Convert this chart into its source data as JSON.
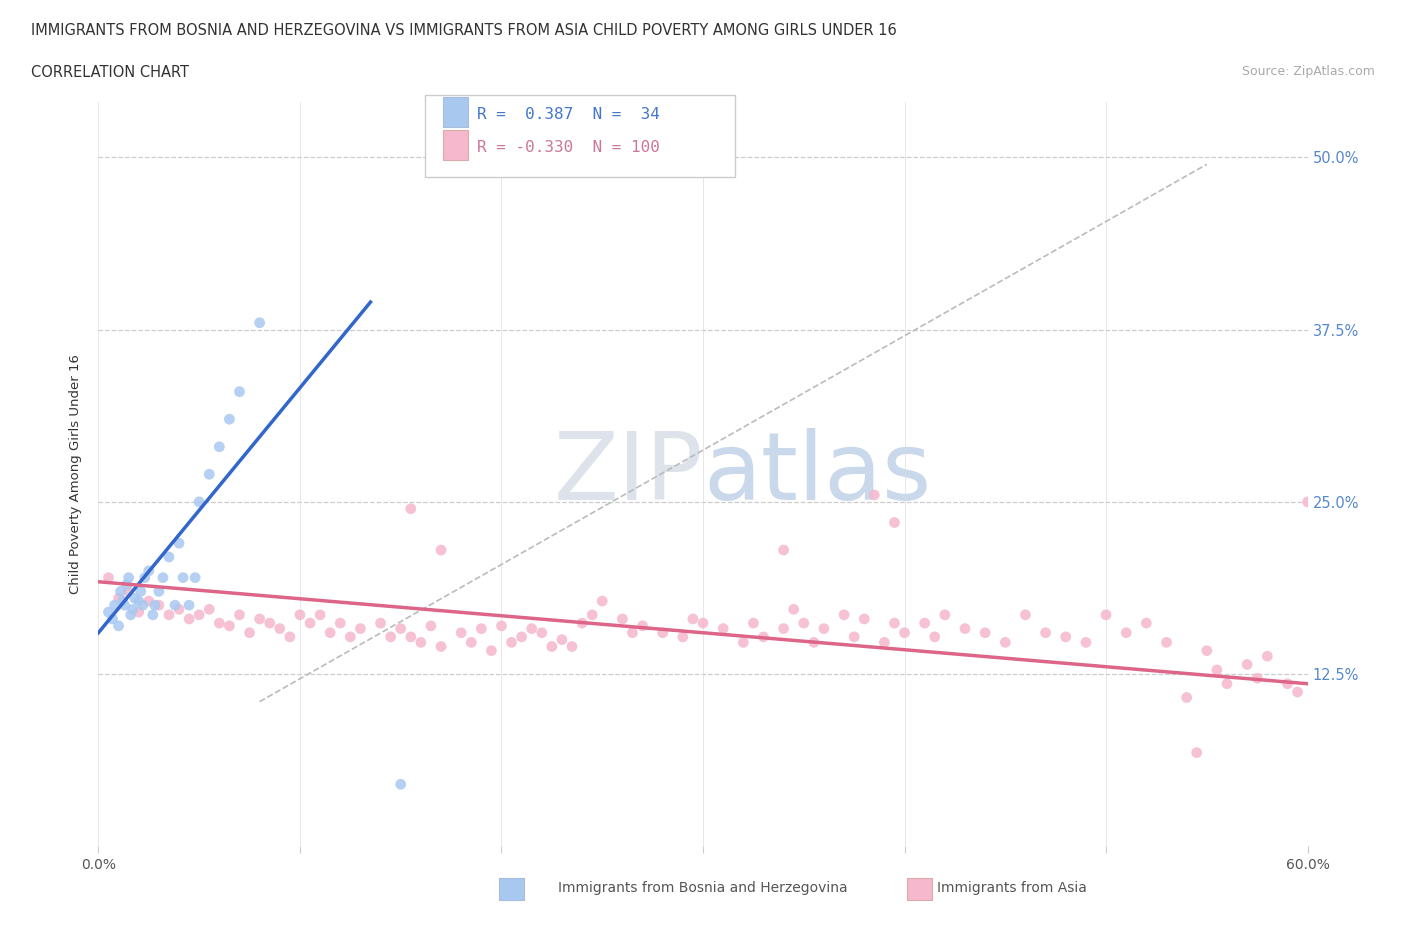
{
  "title_line1": "IMMIGRANTS FROM BOSNIA AND HERZEGOVINA VS IMMIGRANTS FROM ASIA CHILD POVERTY AMONG GIRLS UNDER 16",
  "title_line2": "CORRELATION CHART",
  "source_text": "Source: ZipAtlas.com",
  "ylabel": "Child Poverty Among Girls Under 16",
  "xlim": [
    0.0,
    0.6
  ],
  "ylim": [
    0.0,
    0.54
  ],
  "y_tick_labels": [
    "12.5%",
    "25.0%",
    "37.5%",
    "50.0%"
  ],
  "y_tick_values": [
    0.125,
    0.25,
    0.375,
    0.5
  ],
  "grid_color": "#cccccc",
  "blue_scatter_color": "#a8c8f0",
  "pink_scatter_color": "#f5b8cc",
  "blue_line_color": "#3366cc",
  "pink_line_color": "#dd6688",
  "diagonal_color": "#bbbbbb",
  "bosnia_scatter_x": [
    0.005,
    0.007,
    0.008,
    0.01,
    0.011,
    0.012,
    0.013,
    0.014,
    0.015,
    0.016,
    0.017,
    0.018,
    0.02,
    0.021,
    0.022,
    0.023,
    0.025,
    0.027,
    0.028,
    0.03,
    0.032,
    0.035,
    0.038,
    0.04,
    0.042,
    0.045,
    0.048,
    0.05,
    0.055,
    0.06,
    0.065,
    0.07,
    0.08,
    0.15
  ],
  "bosnia_scatter_y": [
    0.17,
    0.165,
    0.175,
    0.16,
    0.185,
    0.178,
    0.175,
    0.19,
    0.195,
    0.168,
    0.172,
    0.18,
    0.178,
    0.185,
    0.175,
    0.195,
    0.2,
    0.168,
    0.175,
    0.185,
    0.195,
    0.21,
    0.175,
    0.22,
    0.195,
    0.175,
    0.195,
    0.25,
    0.27,
    0.29,
    0.31,
    0.33,
    0.38,
    0.045
  ],
  "asia_scatter_x": [
    0.005,
    0.01,
    0.015,
    0.02,
    0.025,
    0.03,
    0.035,
    0.04,
    0.045,
    0.05,
    0.055,
    0.06,
    0.065,
    0.07,
    0.075,
    0.08,
    0.085,
    0.09,
    0.095,
    0.1,
    0.105,
    0.11,
    0.115,
    0.12,
    0.125,
    0.13,
    0.14,
    0.145,
    0.15,
    0.155,
    0.16,
    0.165,
    0.17,
    0.18,
    0.185,
    0.19,
    0.195,
    0.2,
    0.205,
    0.21,
    0.215,
    0.22,
    0.225,
    0.23,
    0.235,
    0.24,
    0.245,
    0.25,
    0.26,
    0.265,
    0.27,
    0.28,
    0.29,
    0.295,
    0.3,
    0.31,
    0.32,
    0.325,
    0.33,
    0.34,
    0.345,
    0.35,
    0.355,
    0.36,
    0.37,
    0.375,
    0.38,
    0.39,
    0.395,
    0.4,
    0.41,
    0.415,
    0.42,
    0.43,
    0.44,
    0.45,
    0.46,
    0.47,
    0.48,
    0.49,
    0.5,
    0.51,
    0.52,
    0.53,
    0.54,
    0.545,
    0.55,
    0.555,
    0.56,
    0.57,
    0.575,
    0.58,
    0.59,
    0.595,
    0.6,
    0.385,
    0.17,
    0.395,
    0.34,
    0.155
  ],
  "asia_scatter_y": [
    0.195,
    0.18,
    0.185,
    0.17,
    0.178,
    0.175,
    0.168,
    0.172,
    0.165,
    0.168,
    0.172,
    0.162,
    0.16,
    0.168,
    0.155,
    0.165,
    0.162,
    0.158,
    0.152,
    0.168,
    0.162,
    0.168,
    0.155,
    0.162,
    0.152,
    0.158,
    0.162,
    0.152,
    0.158,
    0.152,
    0.148,
    0.16,
    0.145,
    0.155,
    0.148,
    0.158,
    0.142,
    0.16,
    0.148,
    0.152,
    0.158,
    0.155,
    0.145,
    0.15,
    0.145,
    0.162,
    0.168,
    0.178,
    0.165,
    0.155,
    0.16,
    0.155,
    0.152,
    0.165,
    0.162,
    0.158,
    0.148,
    0.162,
    0.152,
    0.158,
    0.172,
    0.162,
    0.148,
    0.158,
    0.168,
    0.152,
    0.165,
    0.148,
    0.162,
    0.155,
    0.162,
    0.152,
    0.168,
    0.158,
    0.155,
    0.148,
    0.168,
    0.155,
    0.152,
    0.148,
    0.168,
    0.155,
    0.162,
    0.148,
    0.108,
    0.068,
    0.142,
    0.128,
    0.118,
    0.132,
    0.122,
    0.138,
    0.118,
    0.112,
    0.25,
    0.255,
    0.215,
    0.235,
    0.215,
    0.245
  ],
  "bosnia_line_x": [
    0.0,
    0.135
  ],
  "bosnia_line_y": [
    0.155,
    0.395
  ],
  "asia_line_x": [
    0.0,
    0.6
  ],
  "asia_line_y": [
    0.192,
    0.118
  ],
  "diagonal_line_x": [
    0.08,
    0.55
  ],
  "diagonal_line_y": [
    0.105,
    0.495
  ]
}
